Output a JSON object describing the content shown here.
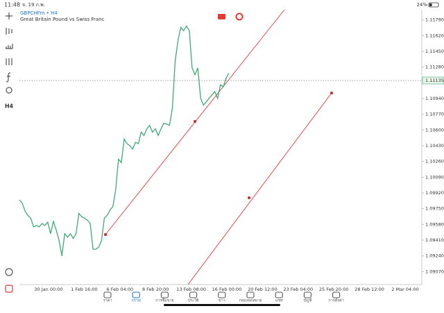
{
  "status_bar": {
    "time": "11:48",
    "date": "จ. 19 ก.พ.",
    "battery": "24%"
  },
  "chart_data": {
    "type": "line",
    "symbol": "GBPCHFm • H4",
    "description": "Great Britain Pound vs Swiss Franc",
    "timeframe": "H4",
    "series": [
      {
        "name": "GBPCHFm",
        "color": "#3daa78",
        "values": [
          1.09846,
          1.09809,
          1.09721,
          1.09677,
          1.09648,
          1.09553,
          1.09568,
          1.09553,
          1.0959,
          1.09568,
          1.09604,
          1.0948,
          1.09612,
          1.09517,
          1.09407,
          1.09239,
          1.0948,
          1.09443,
          1.0948,
          1.09429,
          1.0948,
          1.09699,
          1.09663,
          1.09648,
          1.09626,
          1.0959,
          1.09312,
          1.09312,
          1.09334,
          1.09407,
          1.09648,
          1.09677,
          1.09736,
          1.09772,
          1.09955,
          1.10284,
          1.10248,
          1.10503,
          1.10452,
          1.1043,
          1.10394,
          1.10467,
          1.10452,
          1.10577,
          1.1054,
          1.10613,
          1.1065,
          1.10577,
          1.10613,
          1.1054,
          1.10613,
          1.10672,
          1.10664,
          1.1065,
          1.10832,
          1.11344,
          1.11563,
          1.1171,
          1.11673,
          1.11724,
          1.11673,
          1.11271,
          1.11198,
          1.11271,
          1.10942,
          1.10869,
          1.10905,
          1.10942,
          1.10979,
          1.11015,
          1.10942,
          1.11088,
          1.11066,
          1.11161,
          1.11213
        ]
      }
    ],
    "x_labels": [
      "30 Jan 00:00",
      "1 Feb 16:00",
      "6 Feb 04:00",
      "8 Feb 20:00",
      "13 Feb 08:00",
      "16 Feb 00:00",
      "20 Feb 12:00",
      "23 Feb 04:00",
      "25 Feb 20:00",
      "28 Feb 12:00",
      "2 Mar 04:00"
    ],
    "ylim": [
      1.0893,
      1.119
    ],
    "yticks": [
      {
        "value": 1.1179,
        "label": "1.11790"
      },
      {
        "value": 1.1162,
        "label": "1.11620"
      },
      {
        "value": 1.1145,
        "label": "1.11450"
      },
      {
        "value": 1.1128,
        "label": "1.11280"
      },
      {
        "value": 1.1094,
        "label": "1.10940"
      },
      {
        "value": 1.1077,
        "label": "1.10770"
      },
      {
        "value": 1.106,
        "label": "1.10600"
      },
      {
        "value": 1.1043,
        "label": "1.10430"
      },
      {
        "value": 1.1026,
        "label": "1.10260"
      },
      {
        "value": 1.1009,
        "label": "1.10090"
      },
      {
        "value": 1.0992,
        "label": "1.09920"
      },
      {
        "value": 1.0975,
        "label": "1.09750"
      },
      {
        "value": 1.0958,
        "label": "1.09580"
      },
      {
        "value": 1.0941,
        "label": "1.09410"
      },
      {
        "value": 1.0924,
        "label": "1.09240"
      },
      {
        "value": 1.0907,
        "label": "1.09070"
      }
    ],
    "price_line": {
      "value": 1.11135,
      "label": "1.11135"
    }
  },
  "nav": [
    "ราคา",
    "กราฟ",
    "การซื้อขาย",
    "ประวัติ",
    "ข่าว",
    "กล่องจดหมาย",
    "แชท",
    "บัญชี",
    "การตั้งค่า"
  ]
}
